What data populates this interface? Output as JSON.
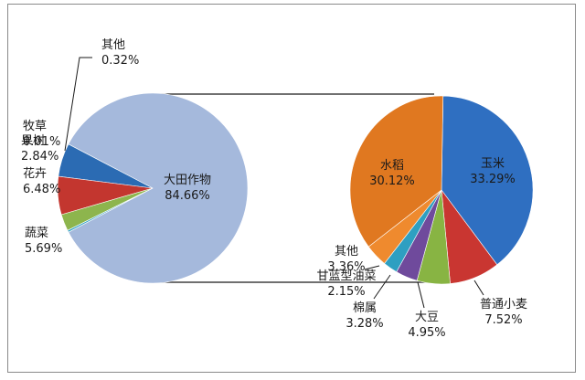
{
  "chart_data": {
    "type": "pie",
    "layout": "pie-of-pie",
    "primary": {
      "slices": [
        {
          "label": "大田作物",
          "value": 84.66,
          "value_text": "84.66%",
          "color": "#a5b9dc"
        },
        {
          "label": "蔬菜",
          "value": 5.69,
          "value_text": "5.69%",
          "color": "#2b6bb3"
        },
        {
          "label": "花卉",
          "value": 6.48,
          "value_text": "6.48%",
          "color": "#c3362f"
        },
        {
          "label": "果树",
          "value": 2.84,
          "value_text": "2.84%",
          "color": "#8db54d"
        },
        {
          "label": "牧草",
          "value": 0.01,
          "value_text": "0.01%",
          "color": "#7b5aa6"
        },
        {
          "label": "其他",
          "value": 0.32,
          "value_text": "0.32%",
          "color": "#33a2c3"
        }
      ]
    },
    "secondary": {
      "slices": [
        {
          "label": "玉米",
          "value": 33.29,
          "value_text": "33.29%",
          "color": "#2f6fc1"
        },
        {
          "label": "普通小麦",
          "value": 7.52,
          "value_text": "7.52%",
          "color": "#c93631"
        },
        {
          "label": "大豆",
          "value": 4.95,
          "value_text": "4.95%",
          "color": "#88b443"
        },
        {
          "label": "棉属",
          "value": 3.28,
          "value_text": "3.28%",
          "color": "#6f4a9c"
        },
        {
          "label": "甘蓝型油菜",
          "value": 2.15,
          "value_text": "2.15%",
          "color": "#2e9fc1"
        },
        {
          "label": "其他",
          "value": 3.36,
          "value_text": "3.36%",
          "color": "#ef8a2e"
        },
        {
          "label": "水稻",
          "value": 30.12,
          "value_text": "30.12%",
          "color": "#e07820"
        }
      ]
    },
    "legend": "none"
  }
}
